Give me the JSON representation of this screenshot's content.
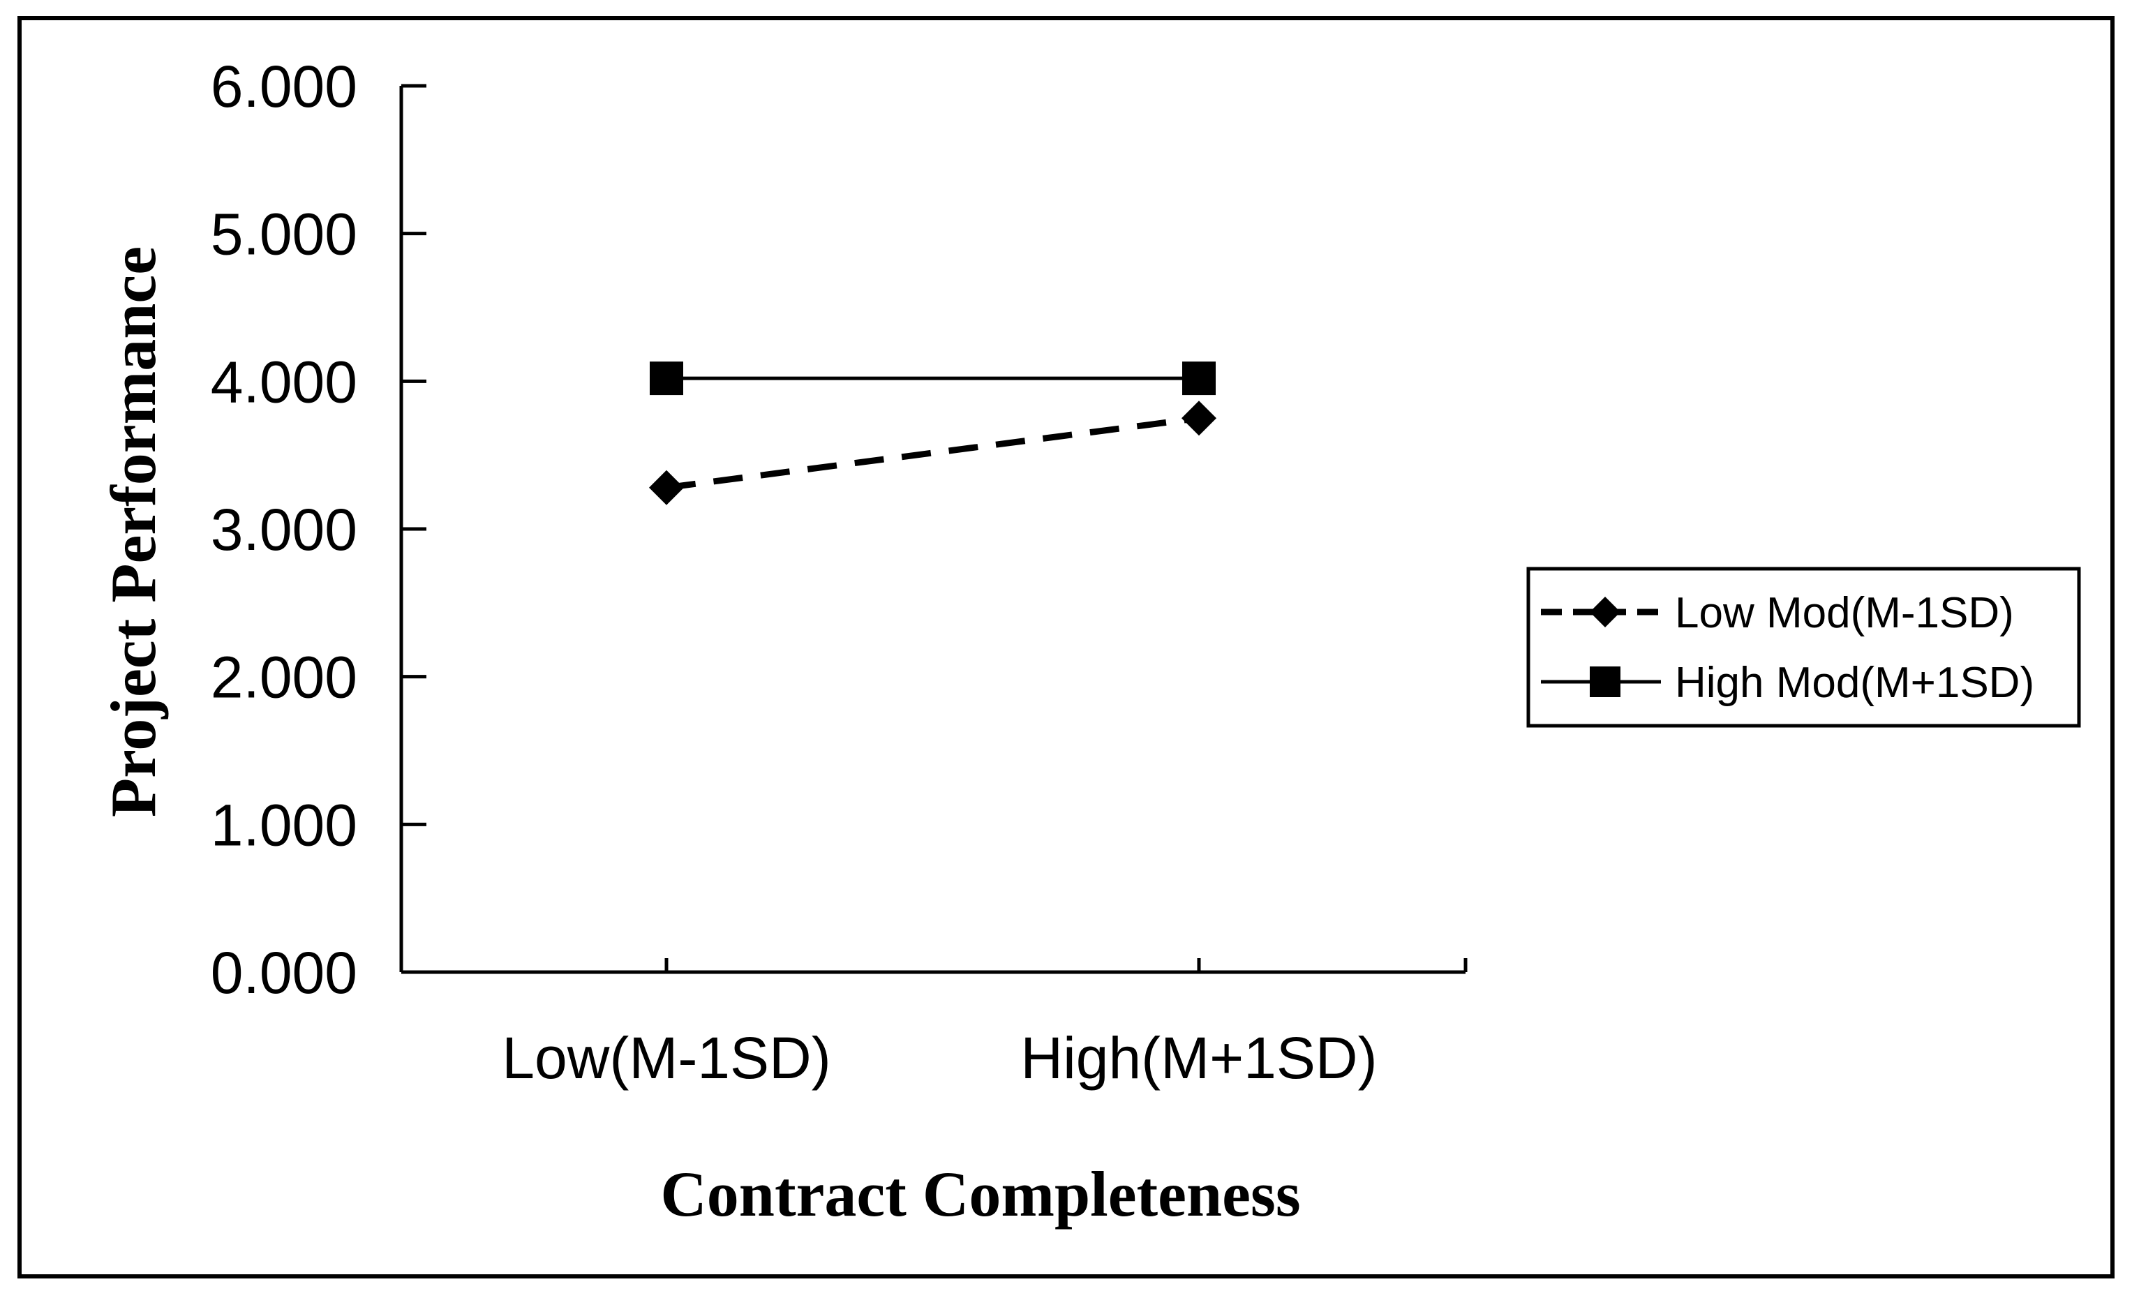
{
  "chart_data": {
    "type": "line",
    "title": "",
    "xlabel": "Contract Completeness",
    "ylabel": "Project Performance",
    "ylim": [
      0,
      6
    ],
    "y_ticks": [
      "0.000",
      "1.000",
      "2.000",
      "3.000",
      "4.000",
      "5.000",
      "6.000"
    ],
    "categories": [
      "Low(M-1SD)",
      "High(M+1SD)"
    ],
    "series": [
      {
        "name": "Low Mod(M-1SD)",
        "values": [
          3.28,
          3.75
        ],
        "marker": "diamond",
        "line_style": "dashed"
      },
      {
        "name": "High Mod(M+1SD)",
        "values": [
          4.02,
          4.02
        ],
        "marker": "square",
        "line_style": "solid"
      }
    ],
    "legend_position": "right",
    "grid": false
  },
  "colors": {
    "line": "#000000",
    "background": "#ffffff"
  }
}
